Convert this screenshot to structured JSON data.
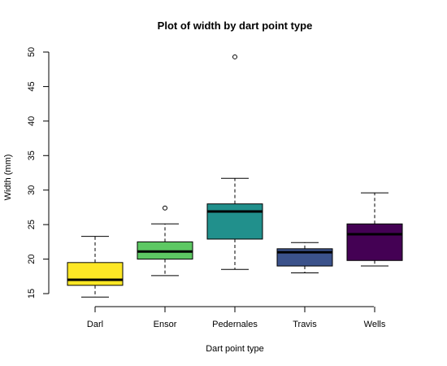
{
  "chart_data": {
    "type": "boxplot",
    "title": "Plot of width by dart point type",
    "xlabel": "Dart point type",
    "ylabel": "Width (mm)",
    "categories": [
      "Darl",
      "Ensor",
      "Pedernales",
      "Travis",
      "Wells"
    ],
    "y_ticks": [
      15,
      20,
      25,
      30,
      35,
      40,
      45,
      50
    ],
    "ylim": [
      15,
      50
    ],
    "boxes": [
      {
        "name": "Darl",
        "lower_whisker": 14.5,
        "q1": 16.2,
        "median": 17.0,
        "q3": 19.5,
        "upper_whisker": 23.3,
        "outliers": [],
        "color": "#FDE725"
      },
      {
        "name": "Ensor",
        "lower_whisker": 17.6,
        "q1": 20.0,
        "median": 21.1,
        "q3": 22.5,
        "upper_whisker": 25.1,
        "outliers": [
          27.4
        ],
        "color": "#5DC863"
      },
      {
        "name": "Pedernales",
        "lower_whisker": 18.5,
        "q1": 22.9,
        "median": 26.9,
        "q3": 28.0,
        "upper_whisker": 31.7,
        "outliers": [
          49.3
        ],
        "color": "#21908C"
      },
      {
        "name": "Travis",
        "lower_whisker": 18.0,
        "q1": 19.0,
        "median": 21.0,
        "q3": 21.5,
        "upper_whisker": 22.4,
        "outliers": [],
        "color": "#3B528B"
      },
      {
        "name": "Wells",
        "lower_whisker": 19.0,
        "q1": 19.8,
        "median": 23.6,
        "q3": 25.1,
        "upper_whisker": 29.6,
        "outliers": [],
        "color": "#440154"
      }
    ]
  }
}
